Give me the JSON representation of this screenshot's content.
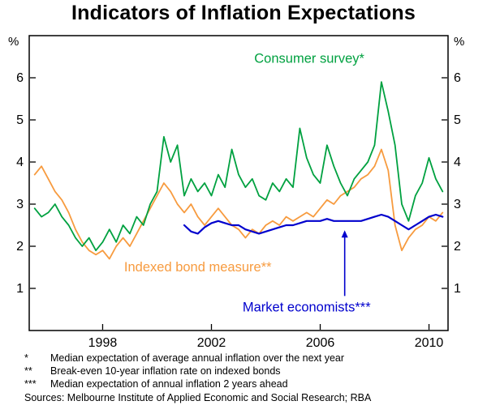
{
  "title": "Indicators of Inflation Expectations",
  "chart_data": {
    "type": "line",
    "title": "Indicators of Inflation Expectations",
    "unit": "%",
    "grid": false,
    "xlim": [
      1995.3,
      2010.7
    ],
    "ylim": [
      0,
      7
    ],
    "y_ticks": [
      1,
      2,
      3,
      4,
      5,
      6
    ],
    "x_ticks": [
      1998,
      2002,
      2006,
      2010
    ],
    "x_tick_labels": [
      "1998",
      "2002",
      "2006",
      "2010"
    ],
    "series": [
      {
        "name": "Indexed bond measure**",
        "color": "#F79B3F",
        "line_width": 1.8,
        "x": [
          1995.5,
          1995.75,
          1996,
          1996.25,
          1996.5,
          1996.75,
          1997,
          1997.25,
          1997.5,
          1997.75,
          1998,
          1998.25,
          1998.5,
          1998.75,
          1999,
          1999.25,
          1999.5,
          1999.75,
          2000,
          2000.25,
          2000.5,
          2000.75,
          2001,
          2001.25,
          2001.5,
          2001.75,
          2002,
          2002.25,
          2002.5,
          2002.75,
          2003,
          2003.25,
          2003.5,
          2003.75,
          2004,
          2004.25,
          2004.5,
          2004.75,
          2005,
          2005.25,
          2005.5,
          2005.75,
          2006,
          2006.25,
          2006.5,
          2006.75,
          2007,
          2007.25,
          2007.5,
          2007.75,
          2008,
          2008.25,
          2008.5,
          2008.75,
          2009,
          2009.25,
          2009.5,
          2009.75,
          2010,
          2010.25,
          2010.5
        ],
        "y": [
          3.7,
          3.9,
          3.6,
          3.3,
          3.1,
          2.8,
          2.4,
          2.1,
          1.9,
          1.8,
          1.9,
          1.7,
          2.0,
          2.2,
          2.0,
          2.3,
          2.6,
          2.9,
          3.2,
          3.5,
          3.3,
          3.0,
          2.8,
          3.0,
          2.7,
          2.5,
          2.7,
          2.9,
          2.7,
          2.5,
          2.4,
          2.2,
          2.4,
          2.3,
          2.5,
          2.6,
          2.5,
          2.7,
          2.6,
          2.7,
          2.8,
          2.7,
          2.9,
          3.1,
          3.0,
          3.2,
          3.3,
          3.4,
          3.6,
          3.7,
          3.9,
          4.3,
          3.8,
          2.5,
          1.9,
          2.2,
          2.4,
          2.5,
          2.7,
          2.6,
          2.8
        ]
      },
      {
        "name": "Consumer survey*",
        "color": "#00A140",
        "line_width": 1.8,
        "x": [
          1995.5,
          1995.75,
          1996,
          1996.25,
          1996.5,
          1996.75,
          1997,
          1997.25,
          1997.5,
          1997.75,
          1998,
          1998.25,
          1998.5,
          1998.75,
          1999,
          1999.25,
          1999.5,
          1999.75,
          2000,
          2000.25,
          2000.5,
          2000.75,
          2001,
          2001.25,
          2001.5,
          2001.75,
          2002,
          2002.25,
          2002.5,
          2002.75,
          2003,
          2003.25,
          2003.5,
          2003.75,
          2004,
          2004.25,
          2004.5,
          2004.75,
          2005,
          2005.25,
          2005.5,
          2005.75,
          2006,
          2006.25,
          2006.5,
          2006.75,
          2007,
          2007.25,
          2007.5,
          2007.75,
          2008,
          2008.25,
          2008.5,
          2008.75,
          2009,
          2009.25,
          2009.5,
          2009.75,
          2010,
          2010.25,
          2010.5
        ],
        "y": [
          2.9,
          2.7,
          2.8,
          3.0,
          2.7,
          2.5,
          2.2,
          2.0,
          2.2,
          1.9,
          2.1,
          2.4,
          2.1,
          2.5,
          2.3,
          2.7,
          2.5,
          3.0,
          3.3,
          4.6,
          4.0,
          4.4,
          3.2,
          3.6,
          3.3,
          3.5,
          3.2,
          3.7,
          3.4,
          4.3,
          3.7,
          3.4,
          3.6,
          3.2,
          3.1,
          3.5,
          3.3,
          3.6,
          3.4,
          4.8,
          4.1,
          3.7,
          3.5,
          4.4,
          3.9,
          3.5,
          3.2,
          3.6,
          3.8,
          4.0,
          4.4,
          5.9,
          5.2,
          4.4,
          3.0,
          2.6,
          3.2,
          3.5,
          4.1,
          3.6,
          3.3
        ]
      },
      {
        "name": "Market economists***",
        "color": "#0000CD",
        "line_width": 2.2,
        "x": [
          2001,
          2001.25,
          2001.5,
          2001.75,
          2002,
          2002.25,
          2002.5,
          2002.75,
          2003,
          2003.25,
          2003.5,
          2003.75,
          2004,
          2004.25,
          2004.5,
          2004.75,
          2005,
          2005.25,
          2005.5,
          2005.75,
          2006,
          2006.25,
          2006.5,
          2006.75,
          2007,
          2007.25,
          2007.5,
          2007.75,
          2008,
          2008.25,
          2008.5,
          2008.75,
          2009,
          2009.25,
          2009.5,
          2009.75,
          2010,
          2010.25,
          2010.5
        ],
        "y": [
          2.5,
          2.35,
          2.3,
          2.45,
          2.55,
          2.6,
          2.55,
          2.5,
          2.5,
          2.4,
          2.35,
          2.3,
          2.35,
          2.4,
          2.45,
          2.5,
          2.5,
          2.55,
          2.6,
          2.6,
          2.6,
          2.65,
          2.6,
          2.6,
          2.6,
          2.6,
          2.6,
          2.65,
          2.7,
          2.75,
          2.7,
          2.6,
          2.5,
          2.4,
          2.5,
          2.6,
          2.7,
          2.75,
          2.7
        ]
      }
    ],
    "annotations": [
      {
        "text": "Consumer survey*",
        "color": "#00A140",
        "x": 2005.6,
        "y": 6.45,
        "anchor": "middle"
      },
      {
        "text": "Indexed bond measure**",
        "color": "#F79B3F",
        "x": 2001.5,
        "y": 1.5,
        "anchor": "middle"
      },
      {
        "text": "Market economists***",
        "color": "#0000CD",
        "x": 2005.5,
        "y": 0.55,
        "anchor": "middle"
      }
    ],
    "arrow": {
      "color": "#0000CD",
      "x": 2006.9,
      "y_from": 0.82,
      "y_to": 2.38
    }
  },
  "footnotes": [
    {
      "marker": "*",
      "text": "Median expectation of average annual inflation over the next year"
    },
    {
      "marker": "**",
      "text": "Break-even 10-year inflation rate on indexed bonds"
    },
    {
      "marker": "***",
      "text": "Median expectation of annual inflation 2 years ahead"
    }
  ],
  "sources": "Sources: Melbourne Institute of Applied Economic and Social Research; RBA"
}
